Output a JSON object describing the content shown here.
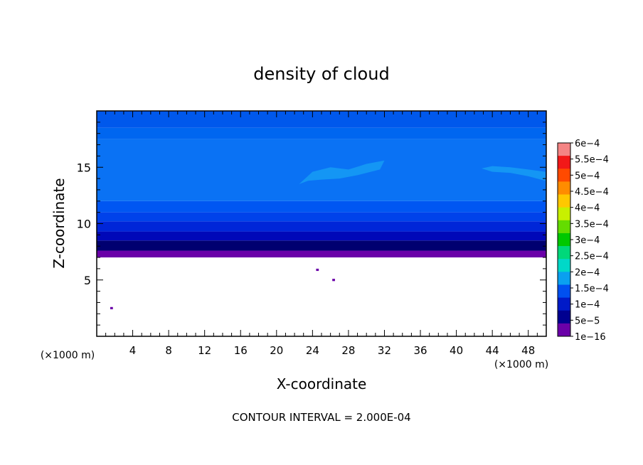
{
  "chart_data": {
    "type": "heatmap",
    "title": "density of cloud",
    "xlabel": "X-coordinate",
    "ylabel": "Z-coordinate",
    "x_unit": "(×1000 m)",
    "y_unit": "(×1000 m)",
    "xlim": [
      0,
      50
    ],
    "ylim": [
      0,
      20
    ],
    "x_ticks": [
      4,
      8,
      12,
      16,
      20,
      24,
      28,
      32,
      36,
      40,
      44,
      48
    ],
    "y_ticks": [
      5,
      10,
      15
    ],
    "footer": "CONTOUR INTERVAL = 2.000E-04",
    "colorbar": {
      "labels": [
        "6e−4",
        "5.5e−4",
        "5e−4",
        "4.5e−4",
        "4e−4",
        "3.5e−4",
        "3e−4",
        "2.5e−4",
        "2e−4",
        "1.5e−4",
        "1e−4",
        "5e−5",
        "1e−16"
      ],
      "colors": [
        "#f48484",
        "#f21818",
        "#ff4a00",
        "#ff8c00",
        "#ffc800",
        "#c8f000",
        "#64dc00",
        "#00c800",
        "#00d87a",
        "#00d8c8",
        "#0aa0f0",
        "#0050f0",
        "#001ac8",
        "#000090",
        "#6a00a8"
      ]
    },
    "bands": [
      {
        "z0": 7.0,
        "z1": 7.6,
        "color": "#6a00a8"
      },
      {
        "z0": 7.6,
        "z1": 8.5,
        "color": "#000070"
      },
      {
        "z0": 8.5,
        "z1": 9.3,
        "color": "#0008b8"
      },
      {
        "z0": 9.3,
        "z1": 10.2,
        "color": "#0026d8"
      },
      {
        "z0": 10.2,
        "z1": 11.0,
        "color": "#0042ea"
      },
      {
        "z0": 11.0,
        "z1": 12.0,
        "color": "#0056f2"
      },
      {
        "z0": 12.0,
        "z1": 17.5,
        "color": "#0a72f4"
      },
      {
        "z0": 17.5,
        "z1": 18.5,
        "color": "#0066f0"
      },
      {
        "z0": 18.5,
        "z1": 20.0,
        "color": "#0058ec"
      }
    ],
    "patches": [
      {
        "x": [
          22.5,
          24,
          26,
          28,
          30,
          32,
          31.5,
          29,
          27,
          25,
          23.5,
          22.5
        ],
        "z": [
          13.5,
          14.6,
          15.0,
          14.8,
          15.3,
          15.6,
          14.8,
          14.3,
          14.0,
          13.9,
          13.8,
          13.5
        ],
        "color": "#1496f4"
      },
      {
        "x": [
          42.8,
          44,
          46,
          48,
          49.9,
          49.9,
          48,
          46,
          44,
          42.8
        ],
        "z": [
          14.9,
          15.1,
          15.0,
          14.8,
          14.6,
          13.8,
          14.2,
          14.5,
          14.6,
          14.9
        ],
        "color": "#1496f4"
      },
      {
        "x": [
          1.5,
          1.8,
          1.8,
          1.5
        ],
        "z": [
          2.6,
          2.6,
          2.4,
          2.4
        ],
        "color": "#6a00a8"
      },
      {
        "x": [
          24.4,
          24.7,
          24.7,
          24.4
        ],
        "z": [
          6.0,
          6.0,
          5.8,
          5.8
        ],
        "color": "#6a00a8"
      },
      {
        "x": [
          26.2,
          26.5,
          26.5,
          26.2
        ],
        "z": [
          5.1,
          5.1,
          4.9,
          4.9
        ],
        "color": "#6a00a8"
      }
    ]
  }
}
